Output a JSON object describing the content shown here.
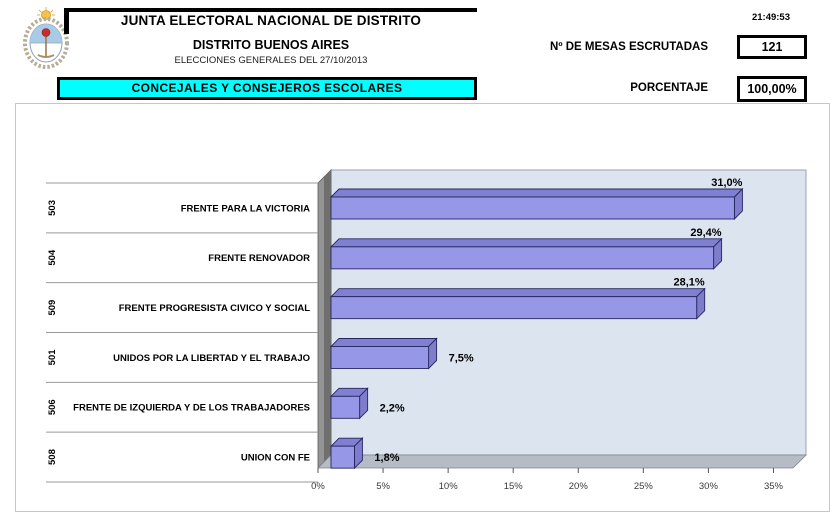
{
  "header": {
    "title": "JUNTA ELECTORAL NACIONAL DE DISTRITO",
    "subtitle": "DISTRITO BUENOS AIRES",
    "election_line": "ELECCIONES GENERALES DEL 27/10/2013",
    "time": "21:49:53",
    "mesas_label": "Nº DE MESAS ESCRUTADAS",
    "mesas_value": "121",
    "porcentaje_label": "PORCENTAJE",
    "porcentaje_value": "100,00%",
    "category_banner": "CONCEJALES Y CONSEJEROS ESCOLARES",
    "banner_color": "#00ffff"
  },
  "chart_data": {
    "type": "bar",
    "orientation": "horizontal",
    "codes": [
      "503",
      "504",
      "509",
      "501",
      "506",
      "508"
    ],
    "categories": [
      "FRENTE PARA LA VICTORIA",
      "FRENTE RENOVADOR",
      "FRENTE PROGRESISTA CIVICO Y SOCIAL",
      "UNIDOS POR LA LIBERTAD Y EL TRABAJO",
      "FRENTE DE IZQUIERDA Y DE LOS TRABAJADORES",
      "UNION CON FE"
    ],
    "values": [
      31.0,
      29.4,
      28.1,
      7.5,
      2.2,
      1.8
    ],
    "value_labels": [
      "31,0%",
      "29,4%",
      "28,1%",
      "7,5%",
      "2,2%",
      "1,8%"
    ],
    "x_ticks": [
      "0%",
      "5%",
      "10%",
      "15%",
      "20%",
      "25%",
      "30%",
      "35%"
    ],
    "xlim": [
      0,
      35
    ],
    "grid": false,
    "legend": false,
    "style_3d": true,
    "bar_color": "#9797e8",
    "bar_top_color": "#8080d2",
    "bar_side_color": "#7d7dcc",
    "bar_outline_color": "#26265e",
    "plot_bg": "#dce4f0",
    "wall_color": "#949494",
    "wall_shade_color": "#6f6f6f",
    "floor_color": "#b6bcc6"
  }
}
